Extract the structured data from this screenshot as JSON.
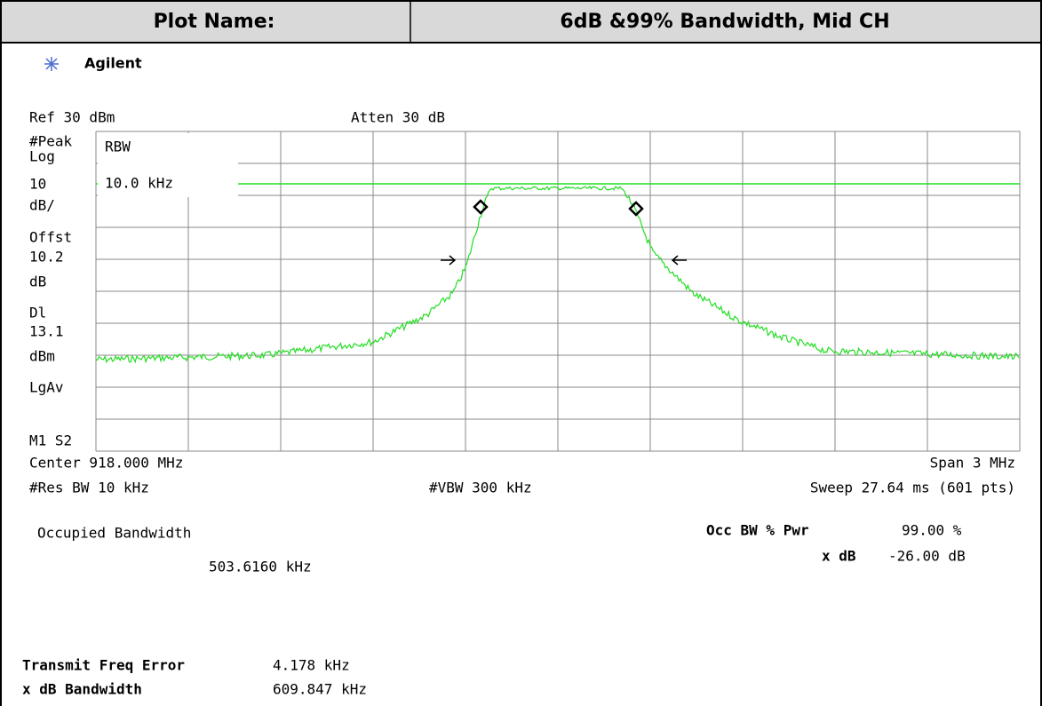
{
  "header": {
    "label": "Plot Name:",
    "value": "6dB &99% Bandwidth, Mid CH"
  },
  "brand": "Agilent",
  "analyzer": {
    "ref": "Ref 30 dBm",
    "atten": "Atten 30 dB",
    "side_labels": [
      "#Peak",
      "Log",
      "10",
      "dB/",
      "Offst",
      "10.2",
      "dB",
      "Dl",
      "13.1",
      "dBm",
      "LgAv",
      "M1  S2"
    ],
    "rbw_label": "RBW",
    "rbw_value": "10.0 kHz",
    "center": "Center 918.000 MHz",
    "span": "Span 3 MHz",
    "res_bw": "#Res BW 10 kHz",
    "vbw": "#VBW 300 kHz",
    "sweep": "Sweep 27.64 ms (601 pts)"
  },
  "results": {
    "title": "Occupied Bandwidth",
    "value": "503.6160 kHz",
    "occ_pwr_label": "Occ BW % Pwr",
    "occ_pwr_value": "99.00 %",
    "xdb_label": "x dB",
    "xdb_value": "-26.00 dB"
  },
  "summary": {
    "rows": [
      [
        "Transmit Freq Error",
        "4.178 kHz"
      ],
      [
        "x dB Bandwidth",
        "609.847 kHz"
      ]
    ]
  }
}
